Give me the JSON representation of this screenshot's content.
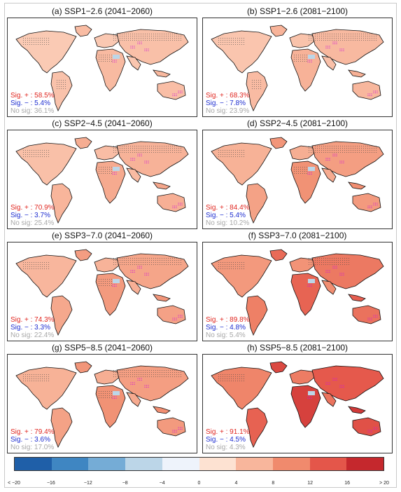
{
  "panels": [
    {
      "title": "(a) SSP1−2.6 (2041−2060)",
      "sig_pos": "Sig. + : 58.5%",
      "sig_neg": "Sig. − : 5.4%",
      "no_sig": "No sig: 36.1%",
      "intensity": 0.25
    },
    {
      "title": "(b) SSP1−2.6 (2081−2100)",
      "sig_pos": "Sig. + : 68.3%",
      "sig_neg": "Sig. − : 7.8%",
      "no_sig": "No sig: 23.9%",
      "intensity": 0.3
    },
    {
      "title": "(c) SSP2−4.5 (2041−2060)",
      "sig_pos": "Sig. + : 70.9%",
      "sig_neg": "Sig. − : 3.7%",
      "no_sig": "No sig: 25.4%",
      "intensity": 0.35
    },
    {
      "title": "(d) SSP2−4.5 (2081−2100)",
      "sig_pos": "Sig. + : 84.4%",
      "sig_neg": "Sig. − : 5.4%",
      "no_sig": "No sig: 10.2%",
      "intensity": 0.5
    },
    {
      "title": "(e) SSP3−7.0 (2041−2060)",
      "sig_pos": "Sig. + : 74.3%",
      "sig_neg": "Sig. − : 3.3%",
      "no_sig": "No sig: 22.4%",
      "intensity": 0.45
    },
    {
      "title": "(f) SSP3−7.0 (2081−2100)",
      "sig_pos": "Sig. + : 89.8%",
      "sig_neg": "Sig. − : 4.8%",
      "no_sig": "No sig: 5.4%",
      "intensity": 0.75
    },
    {
      "title": "(g) SSP5−8.5 (2041−2060)",
      "sig_pos": "Sig. + : 79.4%",
      "sig_neg": "Sig. − : 3.6%",
      "no_sig": "No sig: 17.0%",
      "intensity": 0.5
    },
    {
      "title": "(h) SSP5−8.5 (2081−2100)",
      "sig_pos": "Sig. + : 91.1%",
      "sig_neg": "Sig. − : 4.5%",
      "no_sig": "No sig: 4.3%",
      "intensity": 0.95
    }
  ],
  "colorbar": {
    "labels": [
      "< −20",
      "−16",
      "−12",
      "−8",
      "−4",
      "0",
      "4",
      "8",
      "12",
      "16",
      "> 20"
    ],
    "colors": [
      "#1f5fa8",
      "#3f86c2",
      "#75acd6",
      "#bcd6e8",
      "#eef3fb",
      "#fde2d2",
      "#f8b69c",
      "#f08a6d",
      "#e4564a",
      "#c5282d"
    ]
  },
  "colors": {
    "sig_pos": "#e0261f",
    "sig_neg": "#1f2fd0",
    "no_sig": "#a8a8a8"
  }
}
